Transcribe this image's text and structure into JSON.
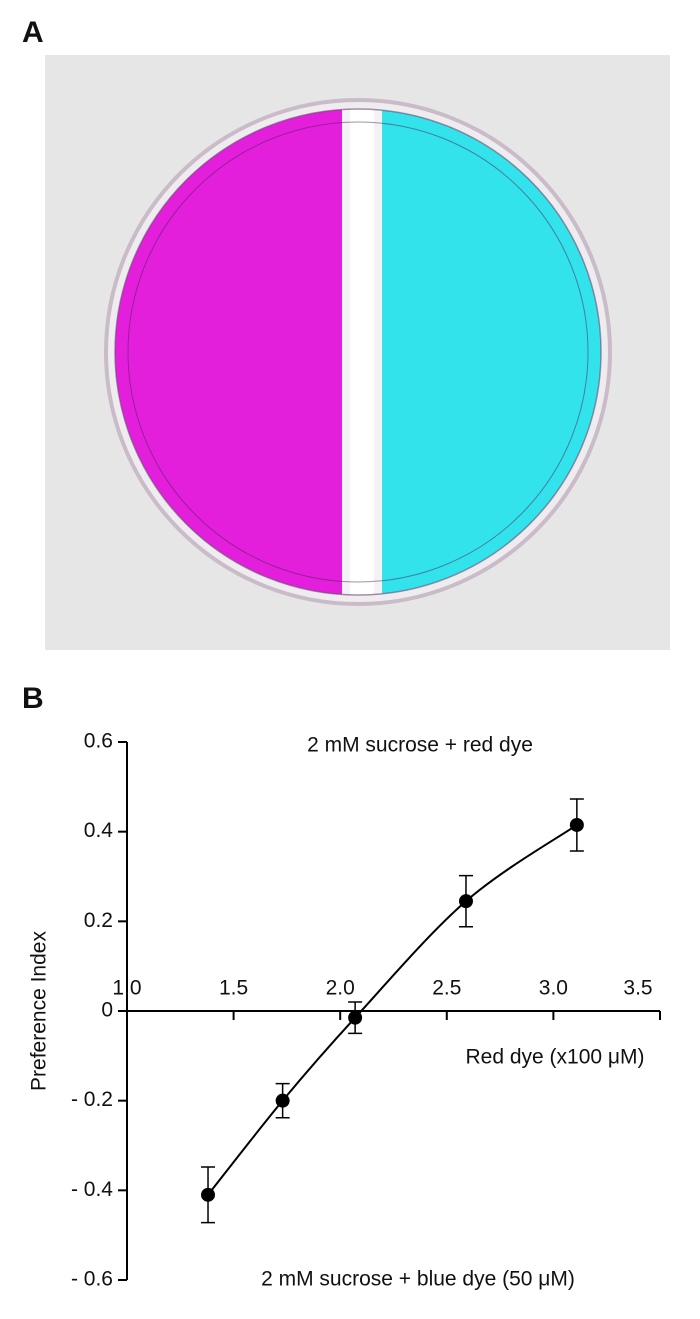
{
  "panels": [
    "A",
    "B"
  ],
  "chart_data": {
    "type": "line",
    "x_label": "Red dye (x100 μM)",
    "y_label": "Preference Index",
    "annotations": [
      "2 mM sucrose + red dye",
      "2 mM sucrose + blue dye (50 μM)"
    ],
    "x": [
      1.38,
      1.73,
      2.07,
      2.59,
      3.11
    ],
    "series": [
      {
        "name": "Preference Index",
        "color": "#000000",
        "values": [
          -0.41,
          -0.2,
          -0.015,
          0.245,
          0.415
        ],
        "errors": [
          0.062,
          0.038,
          0.035,
          0.057,
          0.058
        ]
      }
    ],
    "xlim": [
      1.0,
      3.5
    ],
    "xticks": [
      {
        "value": 1,
        "label": "1.0"
      },
      1.5,
      {
        "value": 2,
        "label": "2.0"
      },
      2.5,
      {
        "value": 3,
        "label": "3.0"
      },
      3.5
    ],
    "ylim": [
      -0.6,
      0.6
    ],
    "yticks": [
      0.6,
      0.4,
      0.2,
      0,
      {
        "value": -0.2,
        "label": "- 0.2"
      },
      {
        "value": -0.4,
        "label": "- 0.4"
      },
      {
        "value": -0.6,
        "label": "- 0.6"
      }
    ],
    "grid": false
  }
}
